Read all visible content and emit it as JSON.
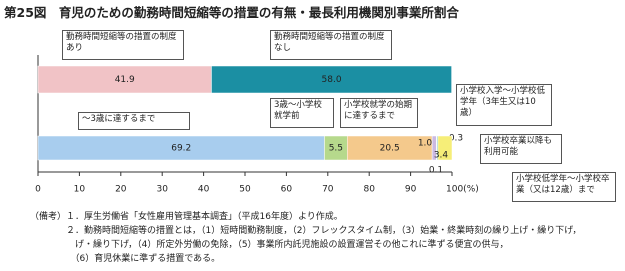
{
  "chart_data": {
    "type": "stacked-barh",
    "title": "第25図　育児のための勤務時間短縮等の措置の有無・最長利用機関別事業所割合",
    "categories": [
      null,
      null
    ],
    "series": [
      {
        "name": "勤務時間短縮等の措置の制度あり",
        "color": "#f1c3c6",
        "values": [
          41.9,
          null
        ]
      },
      {
        "name": "勤務時間短縮等の措置の制度なし",
        "color": "#1b8fa3",
        "values": [
          58.0,
          null
        ],
        "value_labels": [
          "58.0",
          null
        ]
      },
      {
        "name": "～3歳に達するまで",
        "color": "#a8cdee",
        "values": [
          null,
          69.2
        ]
      },
      {
        "name": "3歳～小学校就学前",
        "color": "#b6d98c",
        "values": [
          null,
          5.5
        ]
      },
      {
        "name": "小学校就学の始期に達するまで",
        "color": "#f4c98c",
        "values": [
          null,
          20.5
        ]
      },
      {
        "name": "小学校入学～小学校低学年（3年生又は10歳）",
        "color": "#cbb9e2",
        "values": [
          null,
          1.0
        ],
        "value_labels": [
          null,
          "1.0"
        ]
      },
      {
        "name": "小学校低学年～小学校卒業（又は12歳）まで",
        "color": "#e6e6e6",
        "values": [
          null,
          0.1
        ]
      },
      {
        "name": "小学校卒業以降も利用可能",
        "color": "#8fc9c9",
        "values": [
          null,
          0.3
        ]
      },
      {
        "color": "#f6ee78",
        "values": [
          null,
          3.4
        ]
      }
    ],
    "xlim": [
      0,
      100
    ],
    "xticks": [
      0,
      10,
      20,
      30,
      40,
      50,
      60,
      70,
      80,
      90,
      {
        "value": 100,
        "label": "100(%)"
      }
    ],
    "notes": [
      "（備考）１．厚生労働省「女性雇用管理基本調査」（平成16年度）より作成。",
      "　　　　２．勤務時間短縮等の措置とは，（1）短時間勤務制度，（2）フレックスタイム制，（3）始業・終業時刻の繰り上げ・繰り下げ，",
      "　　　　　げ・繰り下げ，（4）所定外労働の免除，（5）事業所内託児施設の設置運営その他これに準ずる便宜の供与，",
      "　　　　　（6）育児休業に準ずる措置である。"
    ]
  }
}
